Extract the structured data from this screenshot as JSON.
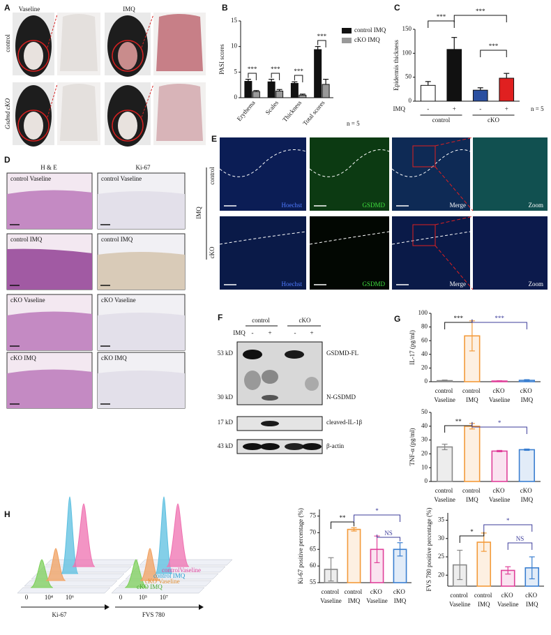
{
  "panels": {
    "A": {
      "label": "A",
      "columns": [
        "Vaseline",
        "IMQ"
      ],
      "rows": [
        "control",
        "Gsdmd cKO"
      ]
    },
    "B": {
      "label": "B",
      "note": "n = 5"
    },
    "C": {
      "label": "C",
      "note": "n = 5",
      "treatment": "IMQ",
      "groups": [
        "control",
        "cKO"
      ]
    },
    "D": {
      "label": "D",
      "columns": [
        "H & E",
        "Ki-67"
      ],
      "captions": [
        "control Vaseline",
        "control IMQ",
        "cKO Vaseline",
        "cKO IMQ"
      ]
    },
    "E": {
      "label": "E",
      "treatment": "IMQ",
      "rows": [
        "control",
        "cKO"
      ],
      "channels": [
        "Hoechst",
        "GSDMD",
        "Merge",
        "Zoom"
      ]
    },
    "F": {
      "label": "F",
      "groups": [
        "control",
        "cKO"
      ],
      "treatment": "IMQ",
      "signs": [
        "-",
        "+",
        "-",
        "+"
      ],
      "markers": [
        "53 kD",
        "30 kD",
        "17 kD",
        "43 kD"
      ],
      "bands": [
        "GSDMD-FL",
        "N-GSDMD",
        "cleaved-IL-1β",
        "β-actin"
      ]
    },
    "G": {
      "label": "G"
    },
    "H": {
      "label": "H",
      "legend": [
        "controlVaseline",
        "control IMQ",
        "cKO Vaseline",
        "cKO IMQ"
      ],
      "axes": [
        "Ki-67",
        "FVS 780"
      ],
      "ticks": [
        [
          "0",
          "10⁴",
          "10⁶"
        ],
        [
          "0",
          "10⁵",
          "10⁷"
        ]
      ]
    }
  },
  "chart_data": [
    {
      "type": "bar",
      "ylabel": "PASI scores",
      "categories": [
        "Erythema",
        "Scales",
        "Thickness",
        "Total scores"
      ],
      "series": [
        {
          "name": "control IMQ",
          "color": "#111111",
          "values": [
            3.2,
            3.1,
            2.8,
            9.4
          ],
          "errors": [
            0.4,
            0.5,
            0.3,
            0.6
          ]
        },
        {
          "name": "cKO IMQ",
          "color": "#999999",
          "values": [
            1.2,
            1.3,
            0.5,
            2.6
          ],
          "errors": [
            0.2,
            0.3,
            0.2,
            1.0
          ]
        }
      ],
      "ylim": [
        0,
        15
      ],
      "yticks": [
        0,
        5,
        10,
        15
      ],
      "annotations": [
        "***",
        "***",
        "***",
        "***"
      ]
    },
    {
      "type": "bar",
      "ylabel": "Epidermis thickness",
      "categories": [
        "-",
        "+",
        "-",
        "+"
      ],
      "values": [
        33,
        108,
        23,
        48
      ],
      "errors": [
        8,
        25,
        5,
        10
      ],
      "colors": [
        "#ffffff",
        "#111111",
        "#2a4fa0",
        "#e02020"
      ],
      "ylim": [
        0,
        150
      ],
      "yticks": [
        0,
        50,
        100,
        150
      ],
      "annotations": [
        "***",
        "***",
        "***"
      ]
    },
    {
      "type": "bar",
      "ylabel": "IL-17 (pg/ml)",
      "categories": [
        "control Vaseline",
        "control IMQ",
        "cKO Vaseline",
        "cKO IMQ"
      ],
      "values": [
        1.5,
        67,
        1,
        2
      ],
      "errors": [
        1,
        22,
        0.5,
        1
      ],
      "colors": [
        "#888888",
        "#f39a3a",
        "#e0409a",
        "#3a7fd0"
      ],
      "outline": true,
      "ylim": [
        0,
        100
      ],
      "yticks": [
        0,
        20,
        40,
        60,
        80,
        100
      ],
      "annotations": [
        "***",
        "***"
      ]
    },
    {
      "type": "bar",
      "ylabel": "TNF-α (pg/ml)",
      "categories": [
        "control Vaseline",
        "control IMQ",
        "cKO Vaseline",
        "cKO IMQ"
      ],
      "values": [
        25,
        40,
        22,
        23
      ],
      "errors": [
        2,
        2,
        0.5,
        0.5
      ],
      "colors": [
        "#888888",
        "#f39a3a",
        "#e0409a",
        "#3a7fd0"
      ],
      "outline": true,
      "ylim": [
        0,
        50
      ],
      "yticks": [
        0,
        10,
        20,
        30,
        40,
        50
      ],
      "annotations": [
        "**",
        "*"
      ]
    },
    {
      "type": "bar",
      "ylabel": "Ki-67 positive percentage (%)",
      "categories": [
        "control Vaseline",
        "control IMQ",
        "cKO Vaseline",
        "cKO IMQ"
      ],
      "values": [
        59,
        71,
        65,
        65
      ],
      "errors": [
        3.5,
        0.5,
        4,
        2
      ],
      "colors": [
        "#888888",
        "#f39a3a",
        "#e0409a",
        "#3a7fd0"
      ],
      "outline": true,
      "ylim": [
        55,
        77
      ],
      "yticks": [
        55,
        60,
        65,
        70,
        75
      ],
      "annotations": [
        "**",
        "*",
        "NS"
      ]
    },
    {
      "type": "bar",
      "ylabel": "FVS 780 positive percentage (%)",
      "categories": [
        "control Vaseline",
        "control IMQ",
        "cKO Vaseline",
        "cKO IMQ"
      ],
      "values": [
        22.8,
        29,
        21.3,
        22
      ],
      "errors": [
        4,
        2.5,
        1,
        3
      ],
      "colors": [
        "#888888",
        "#f39a3a",
        "#e0409a",
        "#3a7fd0"
      ],
      "outline": true,
      "ylim": [
        17,
        37
      ],
      "yticks": [
        20,
        25,
        30,
        35
      ],
      "annotations": [
        "*",
        "*",
        "NS"
      ]
    }
  ]
}
